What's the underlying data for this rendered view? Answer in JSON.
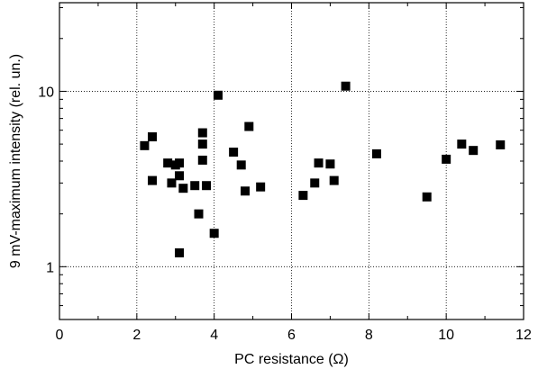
{
  "chart_data": {
    "type": "scatter",
    "xlabel": "PC resistance (Ω)",
    "ylabel": "9 mV-maximum intensity  (rel. un.)",
    "xlim": [
      0,
      12
    ],
    "ylim": [
      0.5,
      32
    ],
    "yscale": "log",
    "x_ticks": [
      0,
      2,
      4,
      6,
      8,
      10,
      12
    ],
    "x_tick_labels": [
      "0",
      "2",
      "4",
      "6",
      "8",
      "10",
      "12"
    ],
    "y_ticks": [
      1,
      10
    ],
    "y_tick_labels": [
      "1",
      "10"
    ],
    "grid": true,
    "marker": "square",
    "marker_color": "#000000",
    "points": [
      {
        "x": 2.2,
        "y": 4.9
      },
      {
        "x": 2.4,
        "y": 5.5
      },
      {
        "x": 2.4,
        "y": 3.1
      },
      {
        "x": 2.8,
        "y": 3.9
      },
      {
        "x": 2.9,
        "y": 3.0
      },
      {
        "x": 3.0,
        "y": 3.8
      },
      {
        "x": 3.1,
        "y": 3.9
      },
      {
        "x": 3.1,
        "y": 3.3
      },
      {
        "x": 3.1,
        "y": 1.2
      },
      {
        "x": 3.2,
        "y": 2.8
      },
      {
        "x": 3.5,
        "y": 2.9
      },
      {
        "x": 3.6,
        "y": 2.0
      },
      {
        "x": 3.7,
        "y": 5.8
      },
      {
        "x": 3.7,
        "y": 5.0
      },
      {
        "x": 3.7,
        "y": 4.05
      },
      {
        "x": 3.8,
        "y": 2.9
      },
      {
        "x": 4.0,
        "y": 1.55
      },
      {
        "x": 4.1,
        "y": 9.5
      },
      {
        "x": 4.5,
        "y": 4.5
      },
      {
        "x": 4.7,
        "y": 3.8
      },
      {
        "x": 4.8,
        "y": 2.7
      },
      {
        "x": 4.9,
        "y": 6.3
      },
      {
        "x": 5.2,
        "y": 2.85
      },
      {
        "x": 6.3,
        "y": 2.55
      },
      {
        "x": 6.6,
        "y": 3.0
      },
      {
        "x": 6.7,
        "y": 3.9
      },
      {
        "x": 7.0,
        "y": 3.85
      },
      {
        "x": 7.1,
        "y": 3.1
      },
      {
        "x": 7.4,
        "y": 10.7
      },
      {
        "x": 8.2,
        "y": 4.4
      },
      {
        "x": 9.5,
        "y": 2.5
      },
      {
        "x": 10.0,
        "y": 4.1
      },
      {
        "x": 10.4,
        "y": 5.0
      },
      {
        "x": 10.7,
        "y": 4.6
      },
      {
        "x": 11.4,
        "y": 4.95
      }
    ]
  }
}
